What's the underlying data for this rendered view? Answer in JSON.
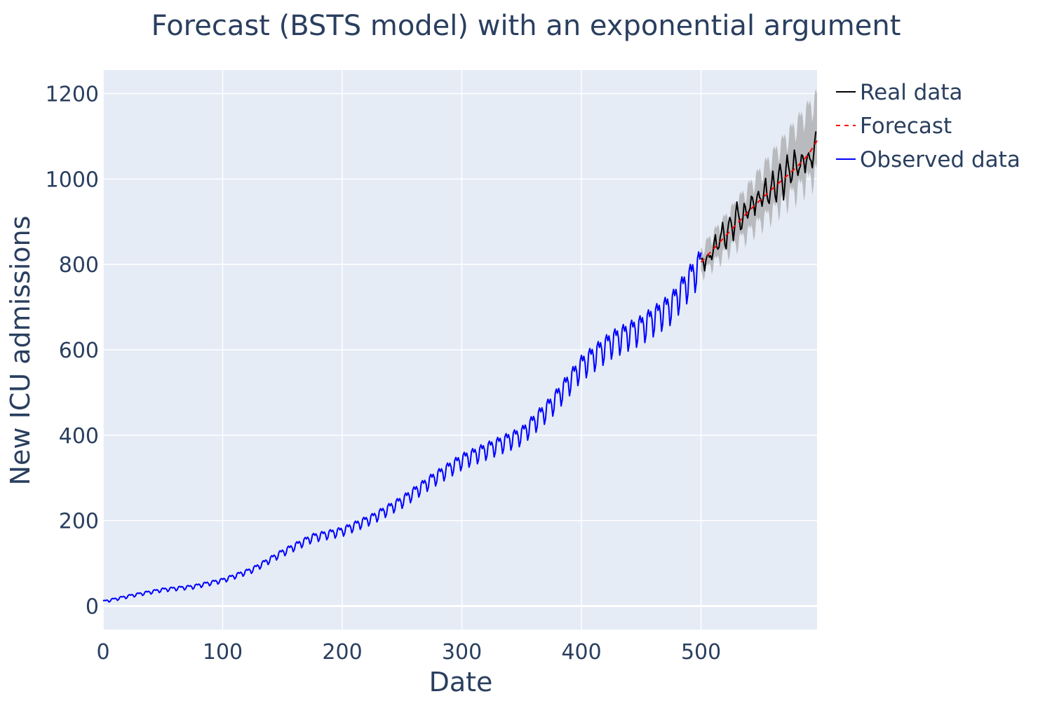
{
  "chart_data": {
    "type": "line",
    "title": "Forecast (BSTS model) with an exponential argument",
    "xlabel": "Date",
    "ylabel": "New ICU admissions",
    "xlim": [
      0,
      597
    ],
    "ylim": [
      -55,
      1255
    ],
    "x_ticks": [
      0,
      100,
      200,
      300,
      400,
      500
    ],
    "y_ticks": [
      0,
      200,
      400,
      600,
      800,
      1000,
      1200
    ],
    "grid": true,
    "legend_position": "top-right",
    "series": [
      {
        "name": "Real data",
        "color": "#000000",
        "style": "solid",
        "x": [
          500,
          503,
          506,
          509,
          512,
          515,
          518,
          521,
          524,
          527,
          530,
          533,
          536,
          539,
          542,
          545,
          548,
          551,
          554,
          557,
          560,
          563,
          566,
          569,
          572,
          575,
          578,
          581,
          584,
          587,
          590,
          593,
          596
        ],
        "y": [
          820,
          780,
          838,
          800,
          868,
          832,
          890,
          845,
          905,
          870,
          935,
          880,
          935,
          900,
          968,
          910,
          985,
          925,
          1000,
          935,
          1010,
          955,
          1030,
          965,
          1045,
          990,
          1060,
          1000,
          1065,
          1010,
          1075,
          1015,
          1110
        ]
      },
      {
        "name": "Forecast",
        "color": "#ff0000",
        "style": "dashed",
        "x": [
          500,
          510,
          520,
          530,
          540,
          550,
          560,
          570,
          580,
          590,
          597
        ],
        "y": [
          805,
          835,
          865,
          895,
          925,
          952,
          978,
          1003,
          1028,
          1058,
          1090
        ]
      },
      {
        "name": "Observed data",
        "color": "#0000ff",
        "style": "solid",
        "x": [
          0,
          25,
          50,
          75,
          100,
          125,
          150,
          175,
          200,
          225,
          250,
          275,
          300,
          325,
          350,
          375,
          400,
          425,
          450,
          475,
          500
        ],
        "y": [
          10,
          25,
          38,
          45,
          60,
          85,
          125,
          160,
          175,
          205,
          245,
          295,
          340,
          370,
          400,
          470,
          560,
          615,
          650,
          700,
          800
        ]
      }
    ],
    "confidence_band": {
      "color": "#a9a9a9",
      "x": [
        500,
        597
      ],
      "lower": [
        775,
        1010
      ],
      "upper": [
        830,
        1185
      ]
    }
  }
}
